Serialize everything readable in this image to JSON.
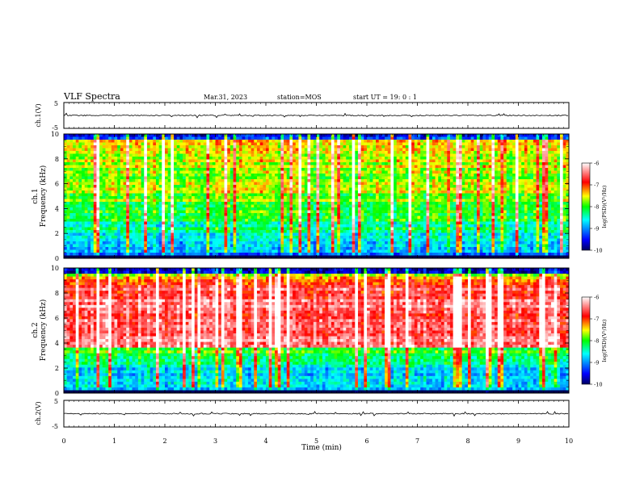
{
  "header": {
    "title": "VLF Spectra",
    "date": "Mar.31, 2023",
    "station": "station=MOS",
    "start": "start  UT =   19: 0  : 1"
  },
  "chart_data": [
    {
      "type": "line",
      "name": "ch1-waveform",
      "ylabel": "ch.1(V)",
      "ylim": [
        -5,
        5
      ],
      "yticks": [
        "5",
        "-5"
      ],
      "baseline": 0
    },
    {
      "type": "heatmap",
      "name": "ch1-spectrogram",
      "ylabel": "Frequency (kHz)",
      "channel_label": "ch.1",
      "ylim": [
        0,
        10
      ],
      "yticks": [
        "0",
        "2",
        "4",
        "6",
        "8",
        "10"
      ],
      "colorbar": {
        "label": "log(PSD)(V²/Hz)",
        "range": [
          -10,
          -6
        ],
        "ticks": [
          "-6",
          "-7",
          "-8",
          "-9",
          "-10"
        ]
      }
    },
    {
      "type": "heatmap",
      "name": "ch2-spectrogram",
      "ylabel": "Frequency (kHz)",
      "channel_label": "ch.2",
      "ylim": [
        0,
        10
      ],
      "yticks": [
        "0",
        "2",
        "4",
        "6",
        "8",
        "10"
      ],
      "colorbar": {
        "label": "log(PSD)(V²/Hz)",
        "range": [
          -10,
          -6
        ],
        "ticks": [
          "-6",
          "-7",
          "-8",
          "-9",
          "-10"
        ]
      }
    },
    {
      "type": "line",
      "name": "ch2-waveform",
      "ylabel": "ch.2(V)",
      "ylim": [
        -5,
        5
      ],
      "yticks": [
        "5",
        "-5"
      ],
      "baseline": 0
    }
  ],
  "xaxis": {
    "label": "Time (min)",
    "xlim": [
      0,
      10
    ],
    "ticks": [
      "0",
      "1",
      "2",
      "3",
      "4",
      "5",
      "6",
      "7",
      "8",
      "9",
      "10"
    ]
  },
  "colors": {
    "background": "#ffffff",
    "axis": "#000000",
    "colormap": [
      "#00007f",
      "#0000ff",
      "#00ffff",
      "#00ff00",
      "#ffff00",
      "#ff0000",
      "#ffffff"
    ]
  }
}
